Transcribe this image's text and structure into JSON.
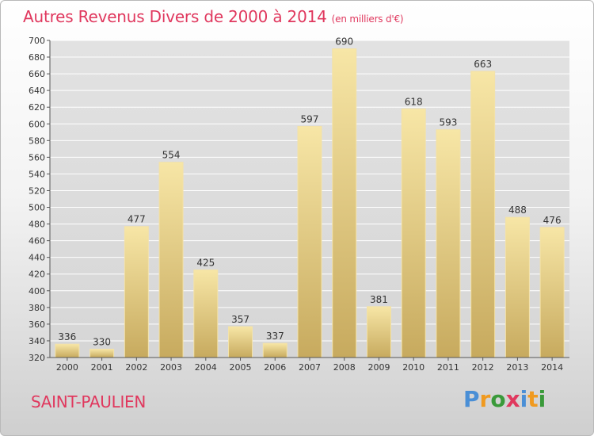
{
  "header": {
    "title": "Autres Revenus Divers de 2000 à 2014",
    "subtitle": "(en milliers d'€)"
  },
  "footer": {
    "city": "SAINT-PAULIEN",
    "logo": {
      "letters": [
        "P",
        "r",
        "o",
        "x",
        "i",
        "t",
        "i"
      ]
    }
  },
  "colors": {
    "title": "#e0385e",
    "bar_light": "#f6e3a2",
    "bar_dark": "#c8ab5f",
    "grid": "#ffffff"
  },
  "chart_data": {
    "type": "bar",
    "categories": [
      "2000",
      "2001",
      "2002",
      "2003",
      "2004",
      "2005",
      "2006",
      "2007",
      "2008",
      "2009",
      "2010",
      "2011",
      "2012",
      "2013",
      "2014"
    ],
    "values": [
      336,
      330,
      477,
      554,
      425,
      357,
      337,
      597,
      690,
      381,
      618,
      593,
      663,
      488,
      476
    ],
    "title": "Autres Revenus Divers de 2000 à 2014",
    "subtitle": "(en milliers d'€)",
    "xlabel": "",
    "ylabel": "",
    "ylim": [
      320,
      700
    ],
    "yticks": [
      320,
      340,
      360,
      380,
      400,
      420,
      440,
      460,
      480,
      500,
      520,
      540,
      560,
      580,
      600,
      620,
      640,
      660,
      680,
      700
    ],
    "grid": true,
    "legend": "none"
  }
}
